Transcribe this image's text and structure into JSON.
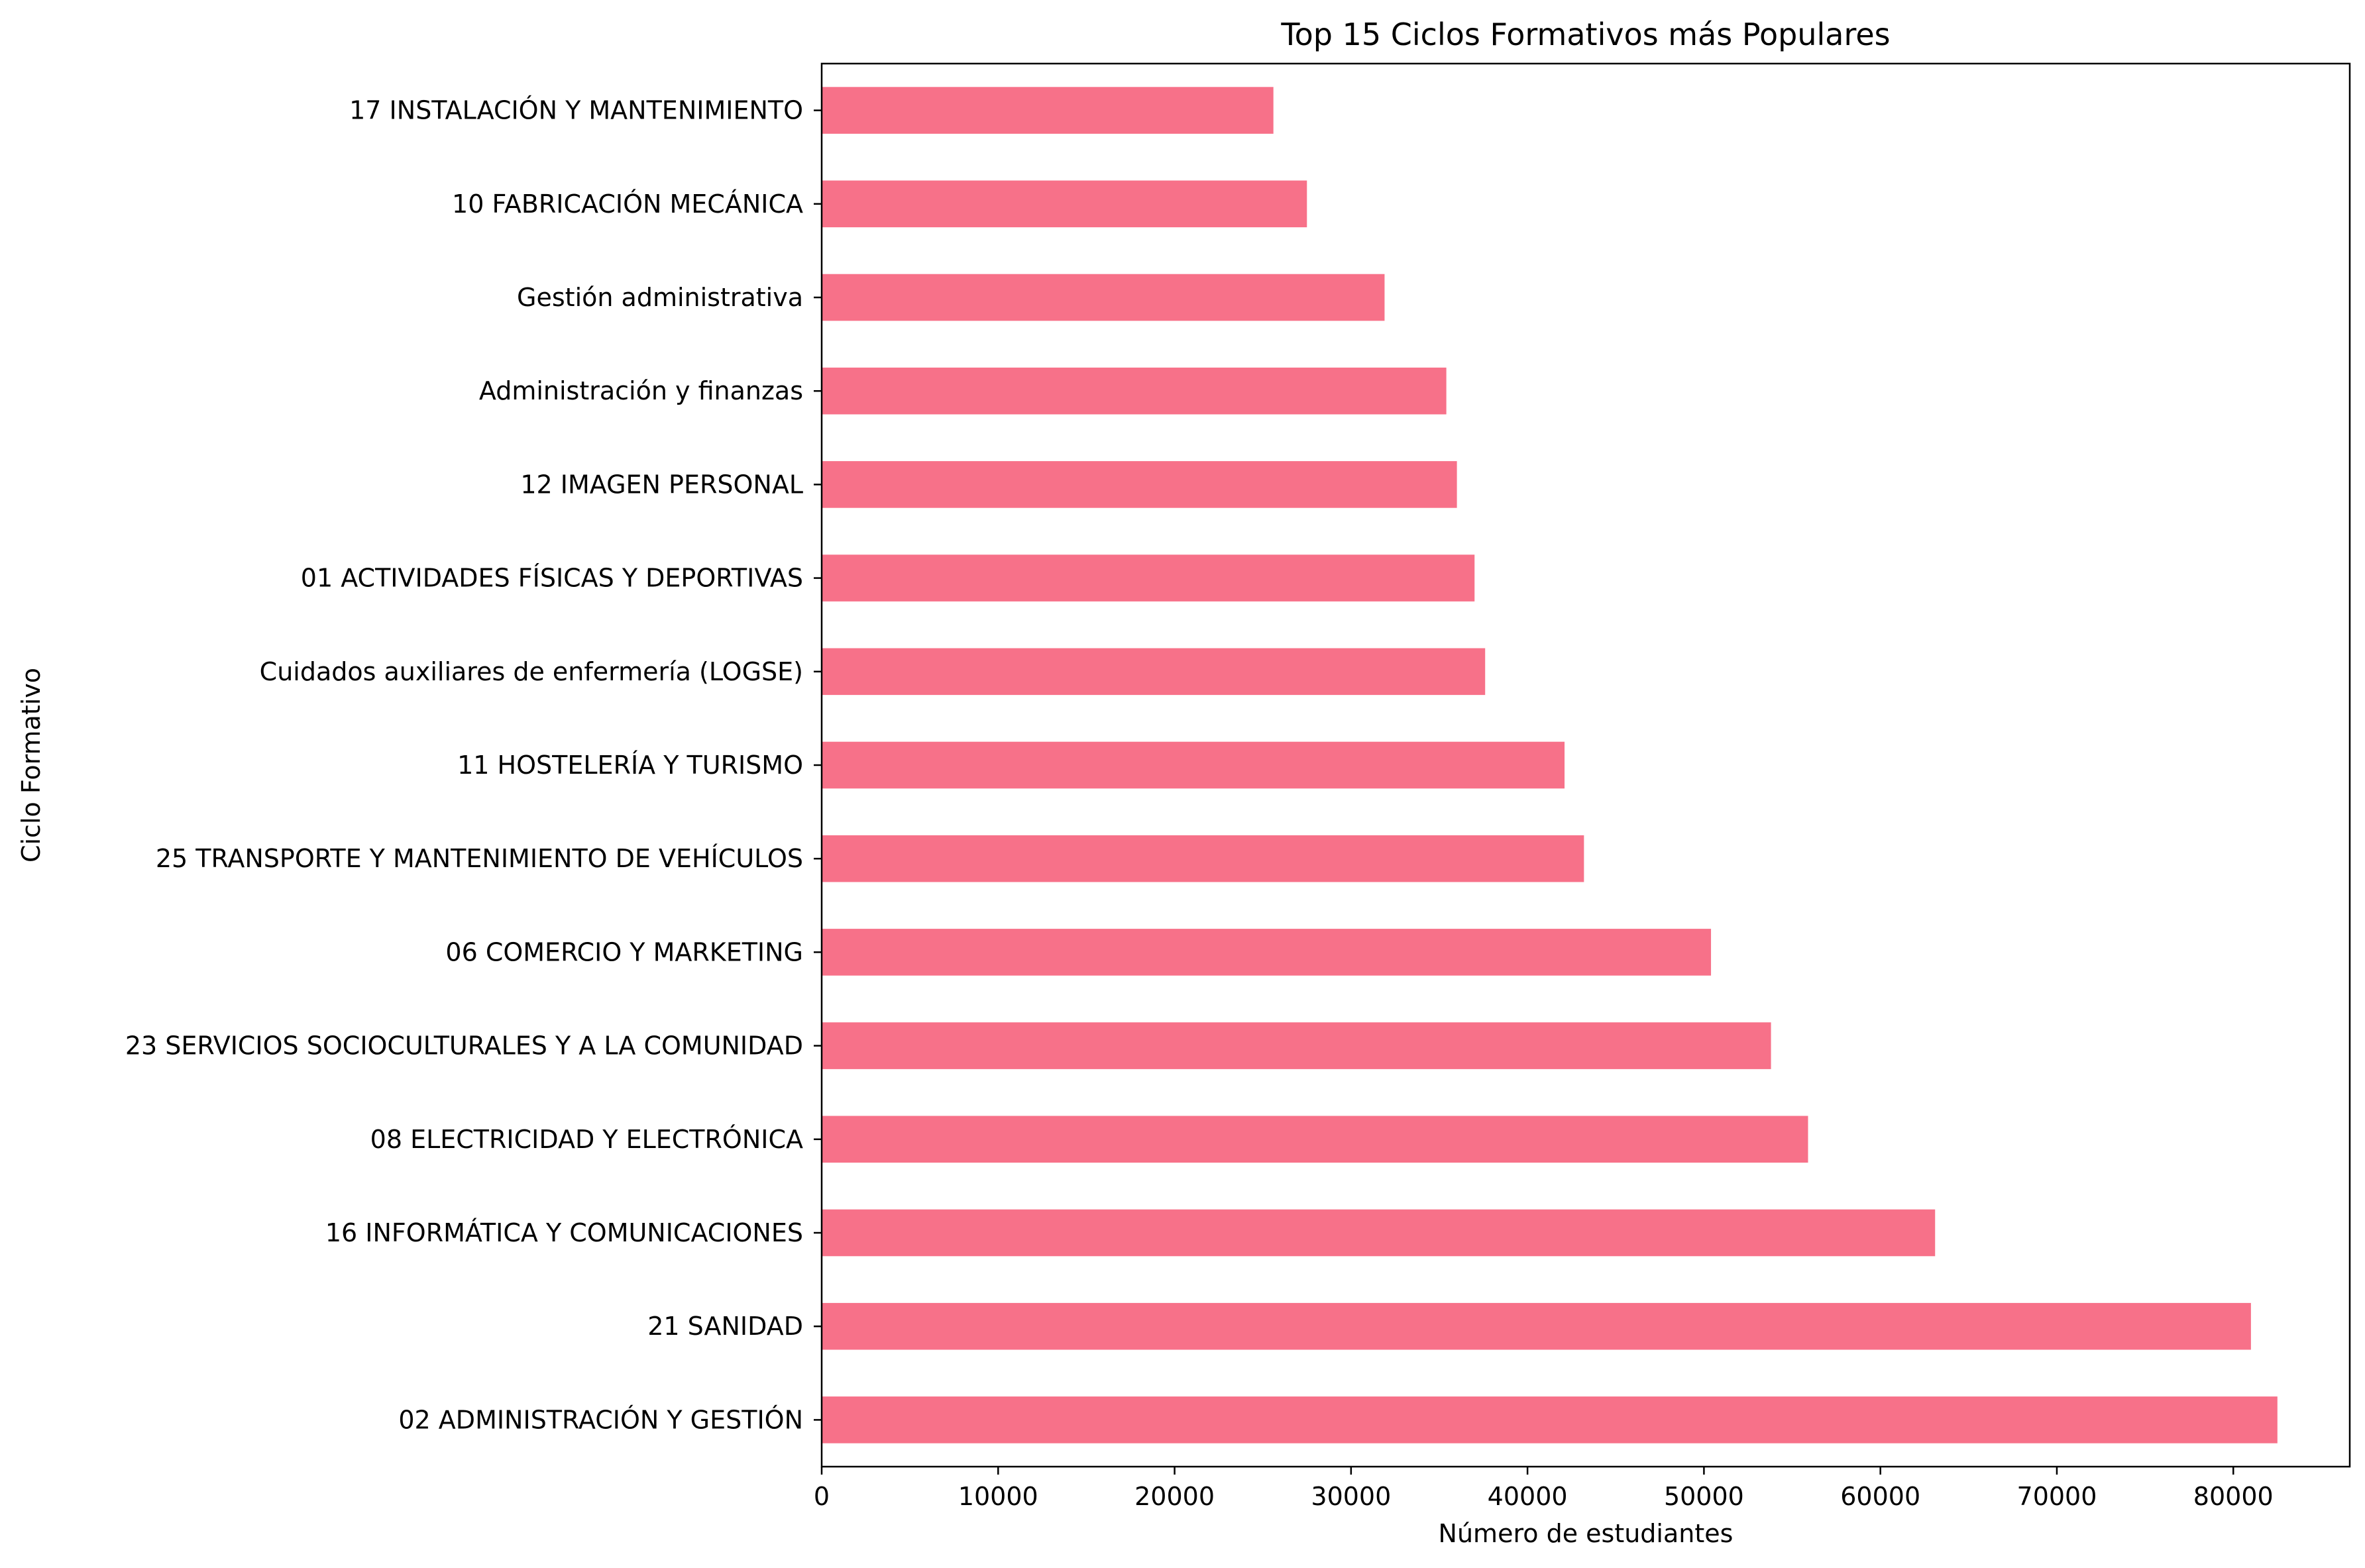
{
  "chart_data": {
    "type": "bar",
    "orientation": "horizontal",
    "title": "Top 15 Ciclos Formativos más Populares",
    "xlabel": "Número de estudiantes",
    "ylabel": "Ciclo Formativo",
    "xlim": [
      0,
      86600
    ],
    "xticks": [
      0,
      10000,
      20000,
      30000,
      40000,
      50000,
      60000,
      70000,
      80000
    ],
    "xtick_labels": [
      "0",
      "10000",
      "20000",
      "30000",
      "40000",
      "50000",
      "60000",
      "70000",
      "80000"
    ],
    "grid": false,
    "legend": "none",
    "bar_color": "#f77189",
    "categories": [
      "02 ADMINISTRACIÓN Y GESTIÓN",
      "21 SANIDAD",
      "16 INFORMÁTICA Y COMUNICACIONES",
      "08 ELECTRICIDAD Y ELECTRÓNICA",
      "23 SERVICIOS SOCIOCULTURALES Y A LA COMUNIDAD",
      "06 COMERCIO Y MARKETING",
      "25 TRANSPORTE Y MANTENIMIENTO DE VEHÍCULOS",
      "11 HOSTELERÍA Y TURISMO",
      "Cuidados auxiliares de enfermería (LOGSE)",
      "01 ACTIVIDADES FÍSICAS Y DEPORTIVAS",
      "12 IMAGEN PERSONAL",
      "Administración y finanzas",
      "Gestión administrativa",
      "10 FABRICACIÓN MECÁNICA",
      "17 INSTALACIÓN Y MANTENIMIENTO"
    ],
    "values": [
      82500,
      81000,
      63100,
      55900,
      53800,
      50400,
      43200,
      42100,
      37600,
      37000,
      36000,
      35400,
      31900,
      27500,
      25600
    ]
  }
}
